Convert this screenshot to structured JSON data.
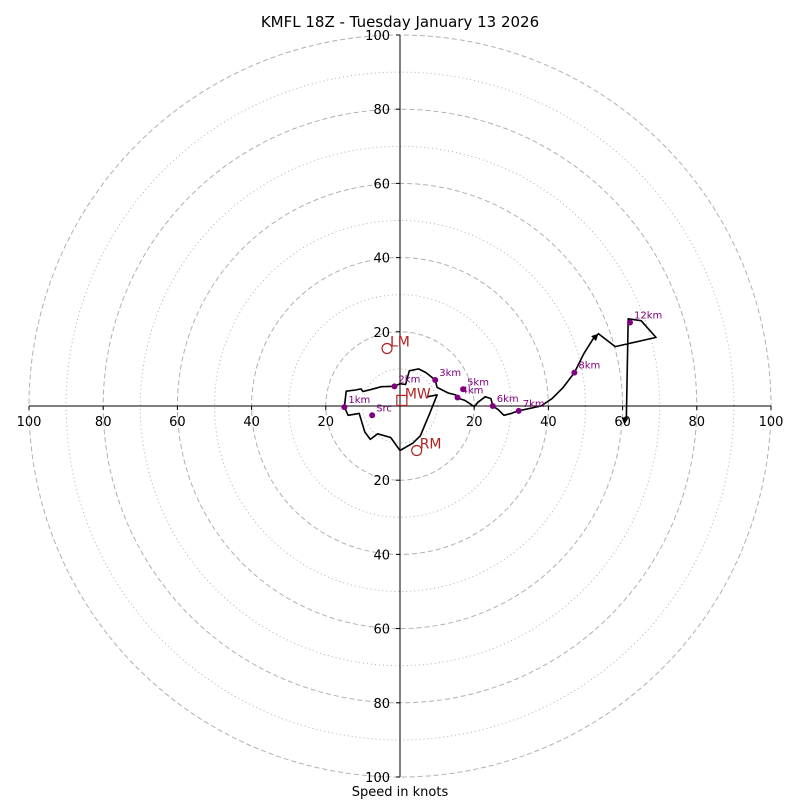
{
  "chart_data": {
    "type": "hodograph",
    "title": "KMFL 18Z - Tuesday January 13 2026",
    "xlabel": "Speed in knots",
    "ylabel": "",
    "units": "knots",
    "xlim": [
      -100,
      100
    ],
    "ylim": [
      -100,
      100
    ],
    "grid": true,
    "rings_dashed": [
      20,
      40,
      60,
      80,
      100
    ],
    "rings_dotted": [
      10,
      30,
      50,
      70,
      90
    ],
    "x_ticks": [
      {
        "value": -100,
        "label": "100"
      },
      {
        "value": -80,
        "label": "80"
      },
      {
        "value": -60,
        "label": "60"
      },
      {
        "value": -40,
        "label": "40"
      },
      {
        "value": -20,
        "label": "20"
      },
      {
        "value": 20,
        "label": "20"
      },
      {
        "value": 40,
        "label": "40"
      },
      {
        "value": 60,
        "label": "60"
      },
      {
        "value": 80,
        "label": "80"
      },
      {
        "value": 100,
        "label": "100"
      }
    ],
    "y_ticks": [
      {
        "value": 100,
        "label": "100"
      },
      {
        "value": 80,
        "label": "80"
      },
      {
        "value": 60,
        "label": "60"
      },
      {
        "value": 40,
        "label": "40"
      },
      {
        "value": 20,
        "label": "20"
      },
      {
        "value": -20,
        "label": "20"
      },
      {
        "value": -40,
        "label": "40"
      },
      {
        "value": -60,
        "label": "60"
      },
      {
        "value": -80,
        "label": "80"
      },
      {
        "value": -100,
        "label": "100"
      }
    ],
    "trace": [
      [
        7.5,
        2.5
      ],
      [
        10.0,
        3.0
      ],
      [
        8.0,
        -2.0
      ],
      [
        5.5,
        -8.0
      ],
      [
        3.5,
        -10.0
      ],
      [
        0.0,
        -12.0
      ],
      [
        -2.5,
        -8.5
      ],
      [
        -6.0,
        -7.5
      ],
      [
        -8.0,
        -9.0
      ],
      [
        -9.5,
        -7.0
      ],
      [
        -11.0,
        -2.0
      ],
      [
        -14.0,
        -2.5
      ],
      [
        -15.0,
        -0.3
      ],
      [
        -14.5,
        4.0
      ],
      [
        -12.0,
        4.3
      ],
      [
        -10.5,
        4.6
      ],
      [
        -10.0,
        3.9
      ],
      [
        -8.0,
        4.4
      ],
      [
        -5.0,
        5.2
      ],
      [
        -1.5,
        5.3
      ],
      [
        0.0,
        6.0
      ],
      [
        1.5,
        5.8
      ],
      [
        2.5,
        9.5
      ],
      [
        5.0,
        10.0
      ],
      [
        7.0,
        9.0
      ],
      [
        9.5,
        7.0
      ],
      [
        10.0,
        5.0
      ],
      [
        13.0,
        3.5
      ],
      [
        15.0,
        3.0
      ],
      [
        16.0,
        2.0
      ],
      [
        17.5,
        1.5
      ],
      [
        19.0,
        0.5
      ],
      [
        20.0,
        -0.2
      ],
      [
        21.0,
        1.0
      ],
      [
        23.0,
        2.5
      ],
      [
        24.5,
        2.0
      ],
      [
        25.0,
        0.0
      ],
      [
        26.5,
        -1.0
      ],
      [
        28.0,
        -2.5
      ],
      [
        30.0,
        -2.0
      ],
      [
        32.0,
        -1.3
      ],
      [
        38.0,
        0.0
      ],
      [
        41.0,
        2.0
      ],
      [
        44.0,
        5.0
      ],
      [
        47.0,
        9.0
      ],
      [
        49.5,
        14.0
      ],
      [
        52.0,
        18.0
      ],
      [
        53.5,
        19.5
      ],
      [
        58.0,
        16.0
      ],
      [
        69.0,
        18.5
      ],
      [
        65.0,
        23.0
      ],
      [
        61.5,
        23.5
      ],
      [
        61.0,
        -4.0
      ]
    ],
    "arrow_start": [
      61.0,
      1.5
    ],
    "arrow_tip": [
      60.5,
      -5.0
    ],
    "trace_arrow_tip": [
      53.5,
      19.5
    ],
    "height_markers": [
      {
        "label": "Src",
        "u": -7.5,
        "v": -2.5
      },
      {
        "label": "1km",
        "u": -15.0,
        "v": -0.3
      },
      {
        "label": "2km",
        "u": -1.5,
        "v": 5.3
      },
      {
        "label": "3km",
        "u": 9.5,
        "v": 7.0
      },
      {
        "label": "4km",
        "u": 15.5,
        "v": 2.3
      },
      {
        "label": "5km",
        "u": 17.0,
        "v": 4.5
      },
      {
        "label": "6km",
        "u": 25.0,
        "v": 0.0
      },
      {
        "label": "7km",
        "u": 32.0,
        "v": -1.3
      },
      {
        "label": "8km",
        "u": 47.0,
        "v": 9.0
      },
      {
        "label": "12km",
        "u": 62.0,
        "v": 22.5
      }
    ],
    "storm_motions": [
      {
        "label": "LM",
        "marker": "circle",
        "u": -3.5,
        "v": 15.5
      },
      {
        "label": "MW",
        "marker": "square",
        "u": 0.5,
        "v": 1.5
      },
      {
        "label": "RM",
        "marker": "circle",
        "u": 4.5,
        "v": -12.0
      }
    ]
  },
  "colors": {
    "trace": "#000000",
    "marker": "#800080",
    "storm": "#b22222",
    "grid": "#b0b0b0",
    "axis": "#000000",
    "text": "#000000"
  }
}
